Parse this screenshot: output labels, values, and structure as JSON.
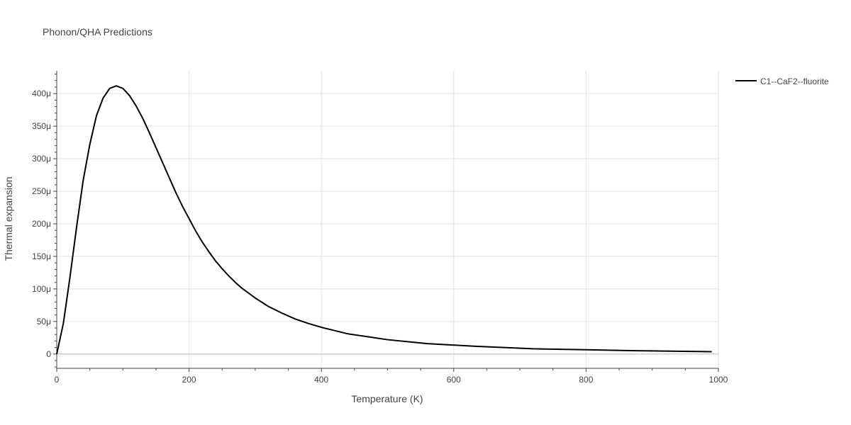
{
  "chart_data": {
    "type": "line",
    "title": "Phonon/QHA Predictions",
    "xlabel": "Temperature (K)",
    "ylabel": "Thermal expansion",
    "xlim": [
      0,
      1000
    ],
    "ylim": [
      -2.2e-05,
      0.000435
    ],
    "x_ticks": [
      0,
      200,
      400,
      600,
      800,
      1000
    ],
    "x_tick_labels": [
      "0",
      "200",
      "400",
      "600",
      "800",
      "1000"
    ],
    "y_ticks": [
      0,
      5e-05,
      0.0001,
      0.00015,
      0.0002,
      0.00025,
      0.0003,
      0.00035,
      0.0004
    ],
    "y_tick_labels": [
      "0",
      "50μ",
      "100μ",
      "150μ",
      "200μ",
      "250μ",
      "300μ",
      "350μ",
      "400μ"
    ],
    "grid": true,
    "legend_position": "top-right",
    "series": [
      {
        "name": "C1--CaF2--fluorite",
        "color": "#000000",
        "x": [
          0,
          10,
          20,
          30,
          40,
          50,
          60,
          70,
          80,
          90,
          100,
          110,
          120,
          130,
          140,
          150,
          160,
          170,
          180,
          190,
          200,
          210,
          220,
          230,
          240,
          250,
          260,
          270,
          280,
          300,
          320,
          340,
          360,
          380,
          400,
          420,
          440,
          460,
          500,
          560,
          630,
          720,
          800,
          860,
          990
        ],
        "y": [
          0,
          4.7e-05,
          0.000118,
          0.000195,
          0.000267,
          0.000322,
          0.000366,
          0.000393,
          0.000408,
          0.000412,
          0.000408,
          0.000397,
          0.000381,
          0.000362,
          0.00034,
          0.000317,
          0.000294,
          0.000271,
          0.000248,
          0.000227,
          0.000208,
          0.000189,
          0.000172,
          0.000157,
          0.000143,
          0.000131,
          0.00012,
          0.00011,
          0.000101,
          8.6e-05,
          7.3e-05,
          6.3e-05,
          5.4e-05,
          4.7e-05,
          4.1e-05,
          3.6e-05,
          3.1e-05,
          2.8e-05,
          2.2e-05,
          1.6e-05,
          1.2e-05,
          8e-06,
          6.5e-06,
          5.3e-06,
          3.5e-06
        ]
      }
    ]
  }
}
